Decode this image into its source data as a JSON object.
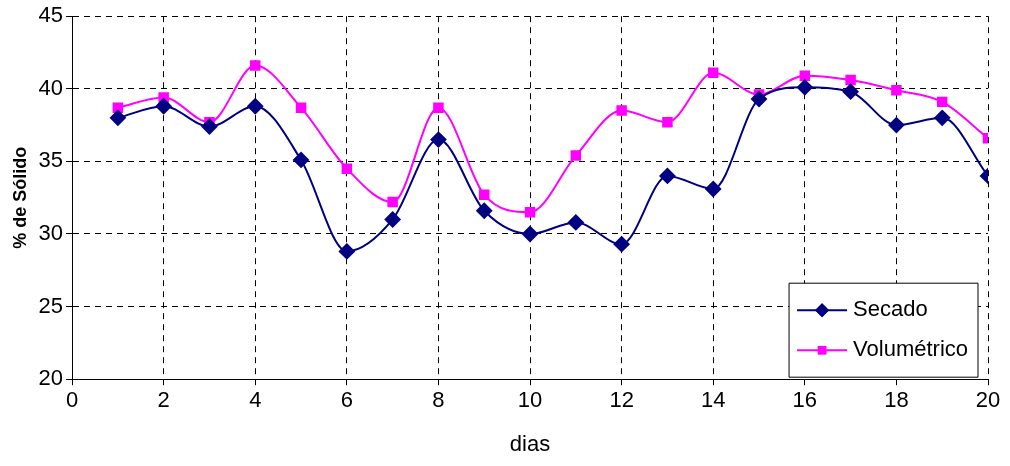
{
  "chart_data": {
    "type": "line",
    "xlabel": "dias",
    "ylabel": "% de Sólido",
    "x": [
      1,
      2,
      3,
      4,
      5,
      6,
      7,
      8,
      9,
      10,
      11,
      12,
      13,
      14,
      15,
      16,
      17,
      18,
      19,
      20
    ],
    "series": [
      {
        "name": "Secado",
        "color": "#000080",
        "marker": "diamond",
        "values": [
          38.0,
          38.8,
          37.4,
          38.8,
          35.1,
          28.8,
          31.0,
          36.5,
          31.6,
          30.0,
          30.8,
          29.3,
          34.0,
          33.1,
          39.3,
          40.1,
          39.8,
          37.5,
          38.0,
          34.0
        ]
      },
      {
        "name": "Volumétrico",
        "color": "#ff00ff",
        "marker": "square",
        "values": [
          38.7,
          39.4,
          37.7,
          41.6,
          38.7,
          34.5,
          32.2,
          38.7,
          32.7,
          31.5,
          35.4,
          38.5,
          37.7,
          41.1,
          39.6,
          40.9,
          40.6,
          39.9,
          39.1,
          36.6
        ]
      }
    ],
    "xlim": [
      0,
      20
    ],
    "xticks": [
      0,
      2,
      4,
      6,
      8,
      10,
      12,
      14,
      16,
      18,
      20
    ],
    "ylim": [
      20,
      45
    ],
    "yticks": [
      20,
      25,
      30,
      35,
      40,
      45
    ],
    "grid": true,
    "legend": "bottom right",
    "line_style": "solid"
  }
}
